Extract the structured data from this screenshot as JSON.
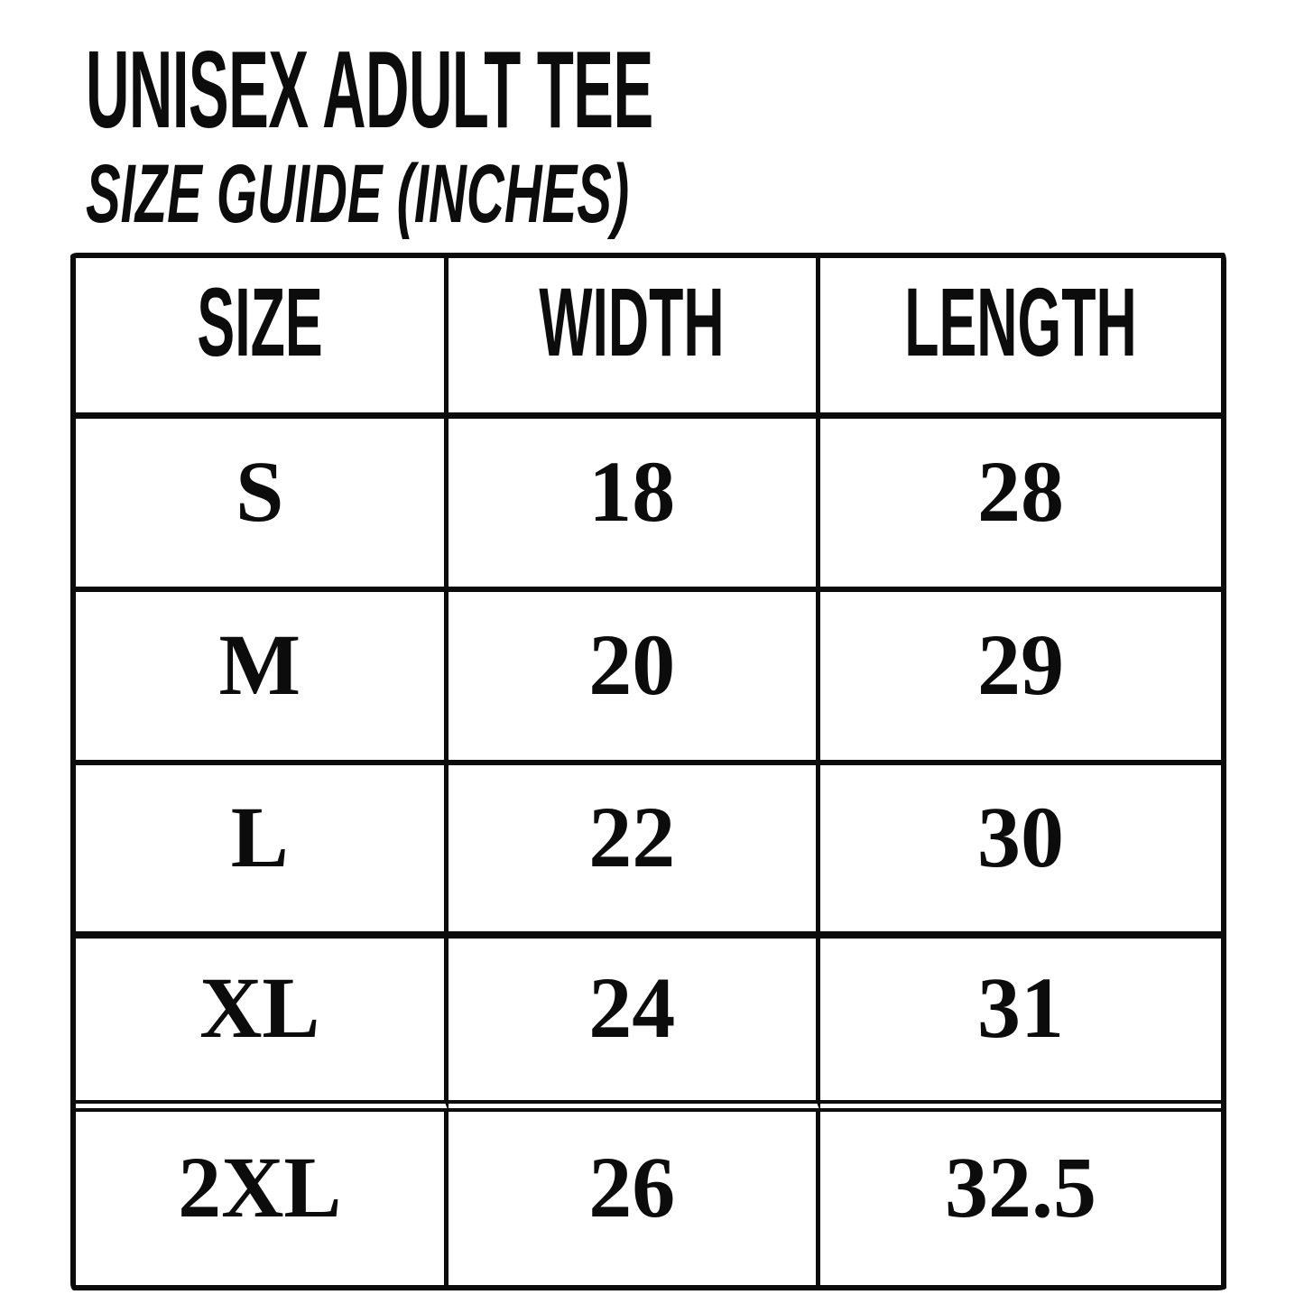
{
  "header": {
    "title": "UNISEX ADULT TEE",
    "subtitle": "SIZE GUIDE (INCHES)"
  },
  "table": {
    "columns": [
      "SIZE",
      "WIDTH",
      "LENGTH"
    ],
    "rows": [
      {
        "size": "S",
        "width": "18",
        "length": "28"
      },
      {
        "size": "M",
        "width": "20",
        "length": "29"
      },
      {
        "size": "L",
        "width": "22",
        "length": "30"
      },
      {
        "size": "XL",
        "width": "24",
        "length": "31"
      },
      {
        "size": "2XL",
        "width": "26",
        "length": "32.5"
      }
    ]
  },
  "units": "inches",
  "colors": {
    "text": "#0c0c0c",
    "border": "#0c0c0c",
    "background": "#ffffff"
  }
}
